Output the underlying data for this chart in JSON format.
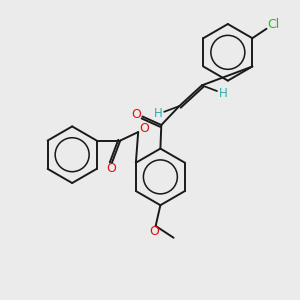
{
  "bg_color": "#ebebeb",
  "bond_color": "#1a1a1a",
  "oxygen_color": "#dd1111",
  "chlorine_color": "#22bb22",
  "hydrogen_color": "#33aaaa",
  "lw": 1.4,
  "dbl_off": 0.045,
  "fig_w": 3.0,
  "fig_h": 3.0,
  "dpi": 100,
  "xlim": [
    -0.5,
    5.5
  ],
  "ylim": [
    -0.3,
    6.0
  ]
}
